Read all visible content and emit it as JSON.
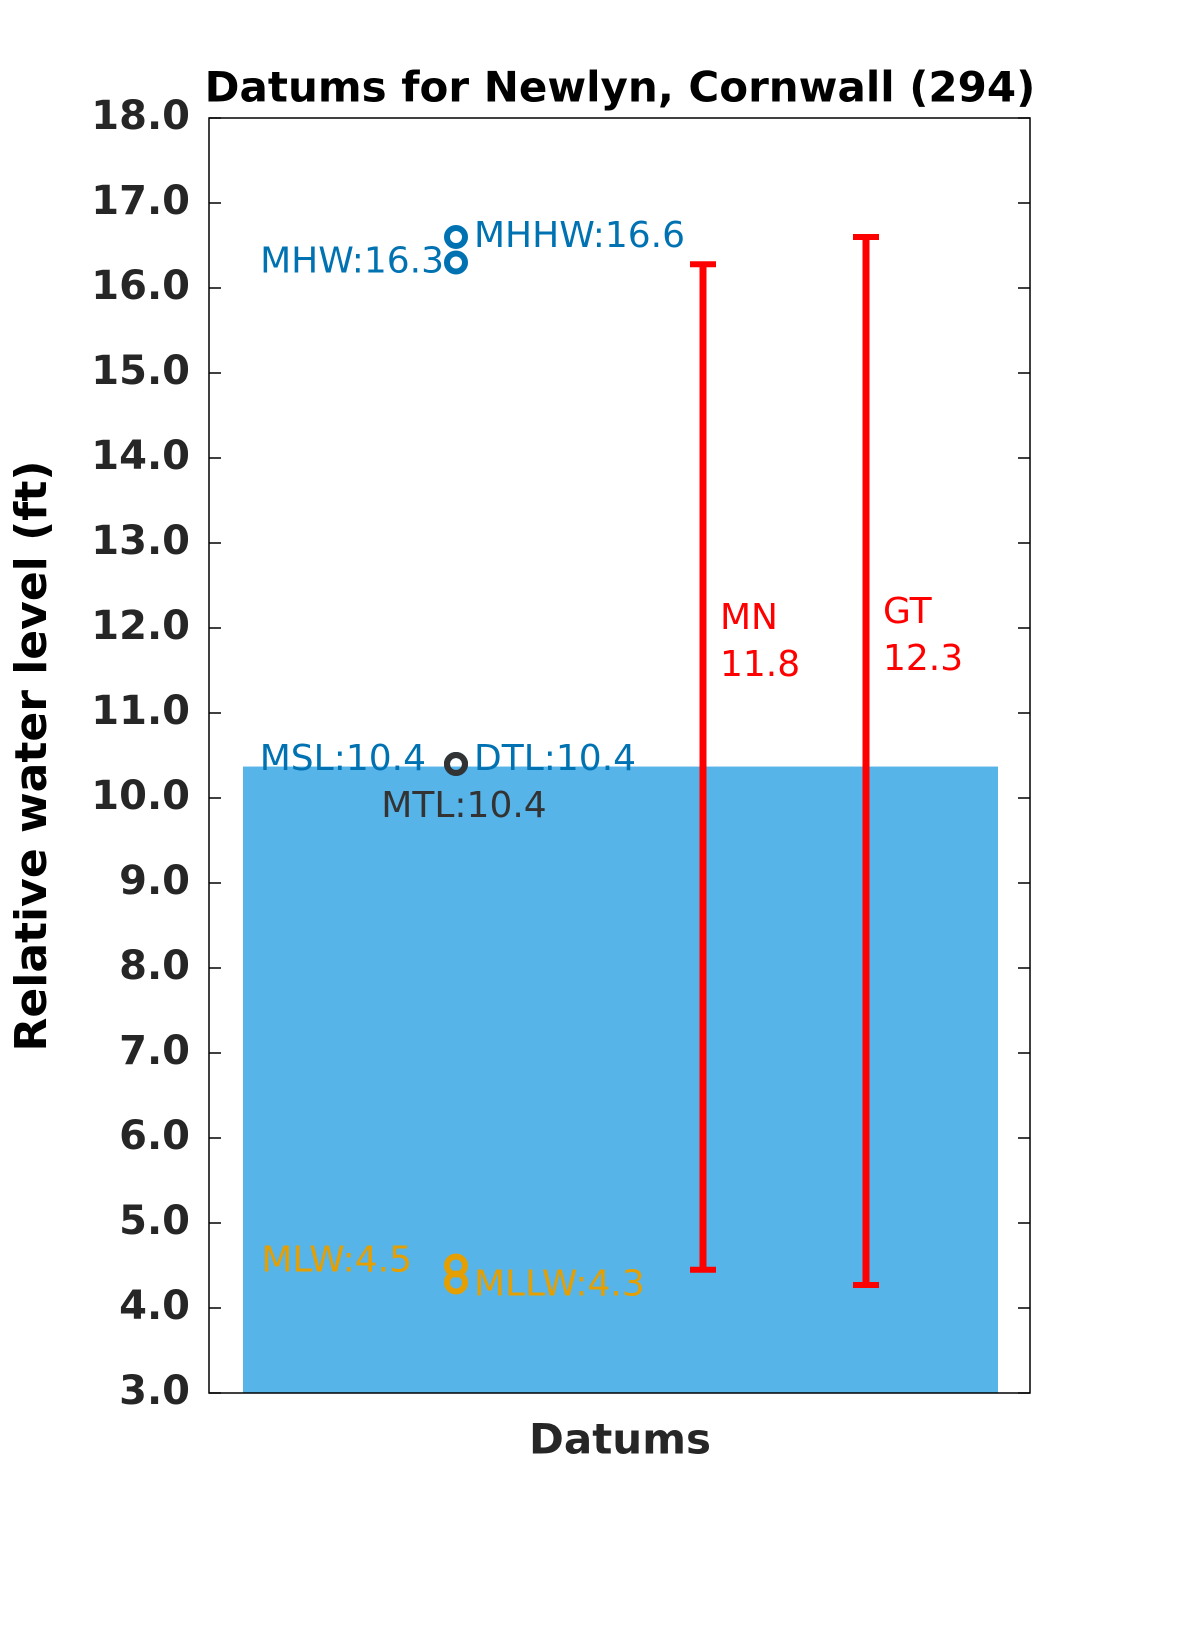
{
  "chart_data": {
    "type": "datum",
    "title": "Datums for Newlyn, Cornwall (294)",
    "xlabel": "Datums",
    "ylabel": "Relative water level (ft)",
    "ylim": [
      3,
      18
    ],
    "yticks": [
      {
        "value": 3,
        "label": "3.0"
      },
      {
        "value": 4,
        "label": "4.0"
      },
      {
        "value": 5,
        "label": "5.0"
      },
      {
        "value": 6,
        "label": "6.0"
      },
      {
        "value": 7,
        "label": "7.0"
      },
      {
        "value": 8,
        "label": "8.0"
      },
      {
        "value": 9,
        "label": "9.0"
      },
      {
        "value": 10,
        "label": "10.0"
      },
      {
        "value": 11,
        "label": "11.0"
      },
      {
        "value": 12,
        "label": "12.0"
      },
      {
        "value": 13,
        "label": "13.0"
      },
      {
        "value": 14,
        "label": "14.0"
      },
      {
        "value": 15,
        "label": "15.0"
      },
      {
        "value": 16,
        "label": "16.0"
      },
      {
        "value": 17,
        "label": "17.0"
      },
      {
        "value": 18,
        "label": "18.0"
      }
    ],
    "bar": {
      "value": 10.37,
      "color": "#56b4e9"
    },
    "points": [
      {
        "value": 16.6,
        "value_label": "MHHW:16.6",
        "color": "#0072b2"
      },
      {
        "value": 16.3,
        "value_label": "MHW:16.3",
        "color": "#0072b2"
      },
      {
        "value": 10.4,
        "value_label": "MSL:10.4",
        "color": "#0072b2"
      },
      {
        "value": 10.4,
        "value_label": "DTL:10.4",
        "color": "#0072b2"
      },
      {
        "value": 10.4,
        "value_label": "MTL:10.4",
        "color": "#333333"
      },
      {
        "value": 4.5,
        "value_label": "MLW:4.5",
        "color": "#e69f00"
      },
      {
        "value": 4.3,
        "value_label": "MLLW:4.3",
        "color": "#e69f00"
      }
    ],
    "ranges": [
      {
        "label": "MN",
        "value": 11.8,
        "low": 4.45,
        "high": 16.28,
        "color": "#ff0000"
      },
      {
        "label": "GT",
        "value": 12.3,
        "low": 4.27,
        "high": 16.6,
        "color": "#ff0000"
      }
    ]
  }
}
